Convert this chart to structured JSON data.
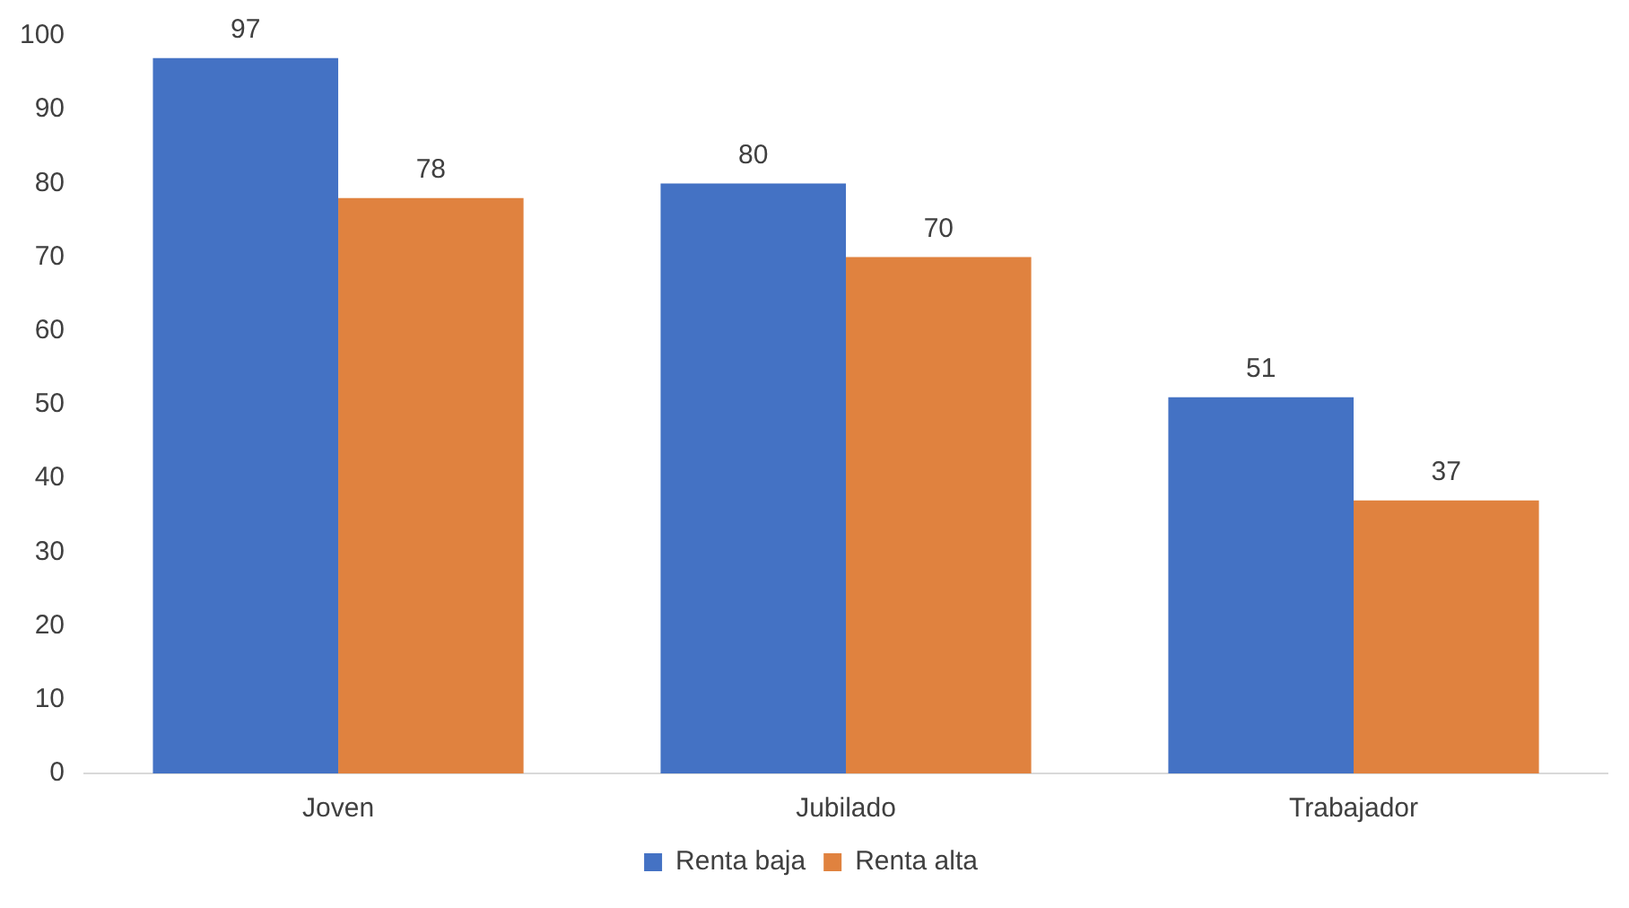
{
  "chart_data": {
    "type": "bar",
    "categories": [
      "Joven",
      "Jubilado",
      "Trabajador"
    ],
    "series": [
      {
        "name": "Renta baja",
        "color": "#4472c4",
        "values": [
          97,
          80,
          51
        ]
      },
      {
        "name": "Renta alta",
        "color": "#e0823f",
        "values": [
          78,
          70,
          37
        ]
      }
    ],
    "ylim": [
      0,
      100
    ],
    "yticks": [
      0,
      10,
      20,
      30,
      40,
      50,
      60,
      70,
      80,
      90,
      100
    ],
    "grid": false,
    "legend": "bottom",
    "data_labels": true
  }
}
